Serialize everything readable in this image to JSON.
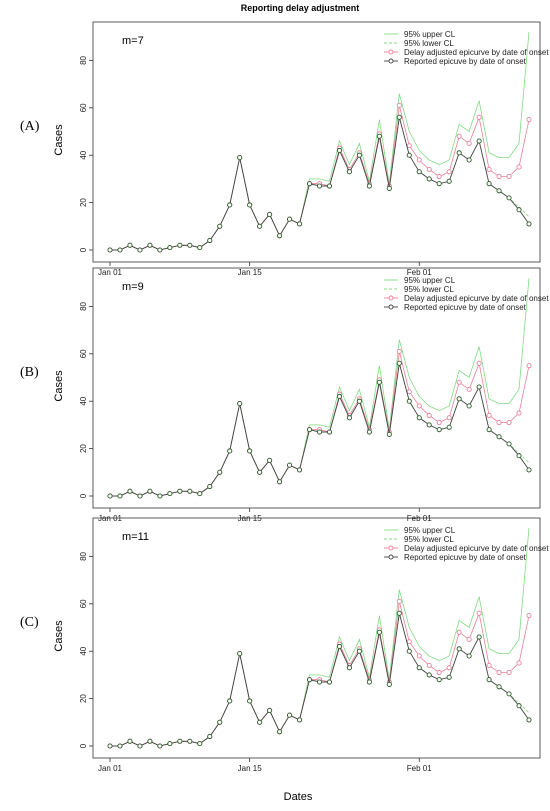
{
  "figure": {
    "title": "Reporting delay adjustment",
    "xlabel": "Dates",
    "colors": {
      "upper": "#7fdc7f",
      "lower": "#7fdc7f",
      "adjusted": "#e8809a",
      "reported": "#444444"
    },
    "legend": {
      "upper": "95% upper CL",
      "lower": "95% lower CL",
      "adjusted": "Delay adjusted epicurve by date of onset",
      "reported": "Reported epicuve by date of onset"
    }
  },
  "chart_data": [
    {
      "type": "line",
      "panel_label": "(A)",
      "m_label": "m=7",
      "ylabel": "Cases",
      "ylim": [
        0,
        92
      ],
      "yticks": [
        0,
        20,
        40,
        60,
        80
      ],
      "xtick_labels": [
        "Jan 01",
        "Jan 15",
        "Feb 01"
      ],
      "xtick_days": [
        0,
        14,
        31
      ],
      "legend_position": "top-right",
      "x_start": "Jan 01",
      "series": [
        {
          "name": "95% upper CL",
          "style": "solid",
          "values": [
            0,
            0,
            2,
            0,
            2,
            0,
            1,
            2,
            2,
            1,
            4,
            10,
            19,
            39,
            19,
            10,
            15,
            6,
            13,
            11,
            30,
            30,
            29,
            46,
            36,
            45,
            29,
            55,
            28,
            66,
            50,
            42,
            38,
            36,
            38,
            53,
            50,
            63,
            41,
            39,
            39,
            45,
            92
          ]
        },
        {
          "name": "95% lower CL",
          "style": "dashed",
          "values": [
            0,
            0,
            2,
            0,
            2,
            0,
            1,
            2,
            2,
            1,
            4,
            10,
            19,
            39,
            19,
            10,
            15,
            6,
            13,
            11,
            28,
            28,
            27,
            42,
            33,
            40,
            27,
            48,
            26,
            56,
            40,
            33,
            30,
            28,
            29,
            41,
            38,
            46,
            28,
            25,
            22,
            18,
            14
          ]
        },
        {
          "name": "Delay adjusted epicurve by date of onset",
          "style": "points",
          "values": [
            0,
            0,
            2,
            0,
            2,
            0,
            1,
            2,
            2,
            1,
            4,
            10,
            19,
            39,
            19,
            10,
            15,
            6,
            13,
            11,
            28,
            28,
            27,
            43,
            34,
            41,
            28,
            49,
            27,
            61,
            44,
            38,
            34,
            31,
            33,
            48,
            45,
            56,
            34,
            31,
            31,
            35,
            55
          ]
        },
        {
          "name": "Reported epicuve by date of onset",
          "style": "points",
          "values": [
            0,
            0,
            2,
            0,
            2,
            0,
            1,
            2,
            2,
            1,
            4,
            10,
            19,
            39,
            19,
            10,
            15,
            6,
            13,
            11,
            28,
            27,
            27,
            42,
            33,
            40,
            27,
            48,
            26,
            56,
            40,
            33,
            30,
            28,
            29,
            41,
            38,
            46,
            28,
            25,
            22,
            17,
            11
          ]
        }
      ]
    },
    {
      "type": "line",
      "panel_label": "(B)",
      "m_label": "m=9",
      "ylabel": "Cases",
      "ylim": [
        0,
        92
      ],
      "yticks": [
        0,
        20,
        40,
        60,
        80
      ],
      "xtick_labels": [
        "Jan 01",
        "Jan 15",
        "Feb 01"
      ],
      "xtick_days": [
        0,
        14,
        31
      ],
      "legend_position": "top-right",
      "x_start": "Jan 01",
      "series": [
        {
          "name": "95% upper CL",
          "style": "solid",
          "values": [
            0,
            0,
            2,
            0,
            2,
            0,
            1,
            2,
            2,
            1,
            4,
            10,
            19,
            39,
            19,
            10,
            15,
            6,
            13,
            11,
            30,
            30,
            29,
            46,
            36,
            45,
            29,
            55,
            28,
            66,
            50,
            42,
            38,
            36,
            38,
            53,
            50,
            63,
            41,
            39,
            39,
            45,
            92
          ]
        },
        {
          "name": "95% lower CL",
          "style": "dashed",
          "values": [
            0,
            0,
            2,
            0,
            2,
            0,
            1,
            2,
            2,
            1,
            4,
            10,
            19,
            39,
            19,
            10,
            15,
            6,
            13,
            11,
            28,
            28,
            27,
            42,
            33,
            40,
            27,
            48,
            26,
            56,
            40,
            33,
            30,
            28,
            29,
            41,
            38,
            46,
            28,
            25,
            22,
            18,
            14
          ]
        },
        {
          "name": "Delay adjusted epicurve by date of onset",
          "style": "points",
          "values": [
            0,
            0,
            2,
            0,
            2,
            0,
            1,
            2,
            2,
            1,
            4,
            10,
            19,
            39,
            19,
            10,
            15,
            6,
            13,
            11,
            28,
            28,
            27,
            43,
            34,
            41,
            28,
            49,
            27,
            61,
            44,
            38,
            34,
            31,
            33,
            48,
            45,
            56,
            34,
            31,
            31,
            35,
            55
          ]
        },
        {
          "name": "Reported epicuve by date of onset",
          "style": "points",
          "values": [
            0,
            0,
            2,
            0,
            2,
            0,
            1,
            2,
            2,
            1,
            4,
            10,
            19,
            39,
            19,
            10,
            15,
            6,
            13,
            11,
            28,
            27,
            27,
            42,
            33,
            40,
            27,
            48,
            26,
            56,
            40,
            33,
            30,
            28,
            29,
            41,
            38,
            46,
            28,
            25,
            22,
            17,
            11
          ]
        }
      ]
    },
    {
      "type": "line",
      "panel_label": "(C)",
      "m_label": "m=11",
      "ylabel": "Cases",
      "ylim": [
        0,
        92
      ],
      "yticks": [
        0,
        20,
        40,
        60,
        80
      ],
      "xtick_labels": [
        "Jan 01",
        "Jan 15",
        "Feb 01"
      ],
      "xtick_days": [
        0,
        14,
        31
      ],
      "legend_position": "top-right",
      "x_start": "Jan 01",
      "series": [
        {
          "name": "95% upper CL",
          "style": "solid",
          "values": [
            0,
            0,
            2,
            0,
            2,
            0,
            1,
            2,
            2,
            1,
            4,
            10,
            19,
            39,
            19,
            10,
            15,
            6,
            13,
            11,
            30,
            30,
            29,
            46,
            36,
            45,
            29,
            55,
            28,
            66,
            50,
            42,
            38,
            36,
            38,
            53,
            50,
            63,
            41,
            39,
            39,
            45,
            92
          ]
        },
        {
          "name": "95% lower CL",
          "style": "dashed",
          "values": [
            0,
            0,
            2,
            0,
            2,
            0,
            1,
            2,
            2,
            1,
            4,
            10,
            19,
            39,
            19,
            10,
            15,
            6,
            13,
            11,
            28,
            28,
            27,
            42,
            33,
            40,
            27,
            48,
            26,
            56,
            40,
            33,
            30,
            28,
            29,
            41,
            38,
            46,
            28,
            25,
            22,
            18,
            14
          ]
        },
        {
          "name": "Delay adjusted epicurve by date of onset",
          "style": "points",
          "values": [
            0,
            0,
            2,
            0,
            2,
            0,
            1,
            2,
            2,
            1,
            4,
            10,
            19,
            39,
            19,
            10,
            15,
            6,
            13,
            11,
            28,
            28,
            27,
            43,
            34,
            41,
            28,
            49,
            27,
            61,
            44,
            38,
            34,
            31,
            33,
            48,
            45,
            56,
            34,
            31,
            31,
            35,
            55
          ]
        },
        {
          "name": "Reported epicuve by date of onset",
          "style": "points",
          "values": [
            0,
            0,
            2,
            0,
            2,
            0,
            1,
            2,
            2,
            1,
            4,
            10,
            19,
            39,
            19,
            10,
            15,
            6,
            13,
            11,
            28,
            27,
            27,
            42,
            33,
            40,
            27,
            48,
            26,
            56,
            40,
            33,
            30,
            28,
            29,
            41,
            38,
            46,
            28,
            25,
            22,
            17,
            11
          ]
        }
      ]
    }
  ]
}
